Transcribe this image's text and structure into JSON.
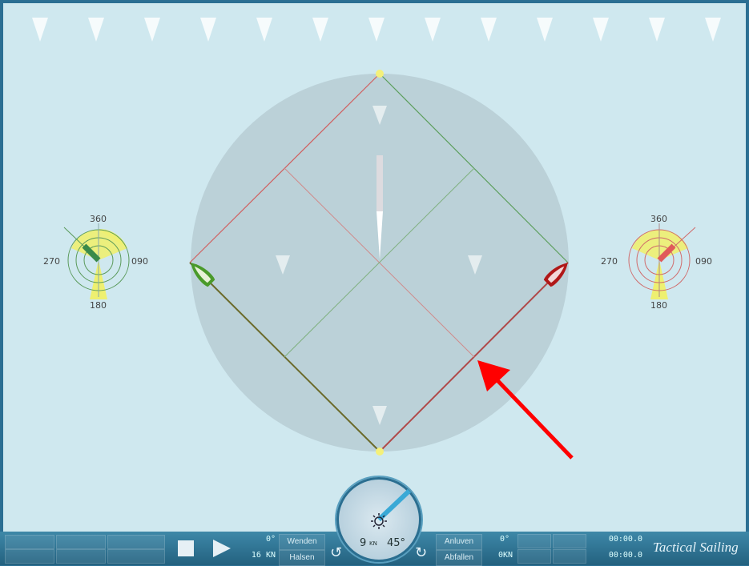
{
  "compass_left": {
    "n": "360",
    "e": "090",
    "s": "180",
    "w": "270"
  },
  "compass_right": {
    "n": "360",
    "e": "090",
    "s": "180",
    "w": "270"
  },
  "toolbar": {
    "left_faded": [
      "",
      "",
      "",
      "",
      "",
      ""
    ],
    "stop_icon": "stop-icon",
    "play_icon": "play-icon",
    "heading_left": "0°",
    "speed_left": "16 KN",
    "wenden": "Wenden",
    "halsen": "Halsen",
    "anluven": "Anluven",
    "abfallen": "Abfallen",
    "heading_right": "0°",
    "speed_right": "0KN",
    "timer_top": "00:00.0",
    "timer_bottom": "00:00.0",
    "brand": "Tactical Sailing"
  },
  "dial": {
    "speed": "9",
    "speed_unit": "KN",
    "angle": "45°"
  },
  "colors": {
    "green_boat": "#4a9a2a",
    "red_boat": "#b01818",
    "annotation": "#ff0000"
  }
}
